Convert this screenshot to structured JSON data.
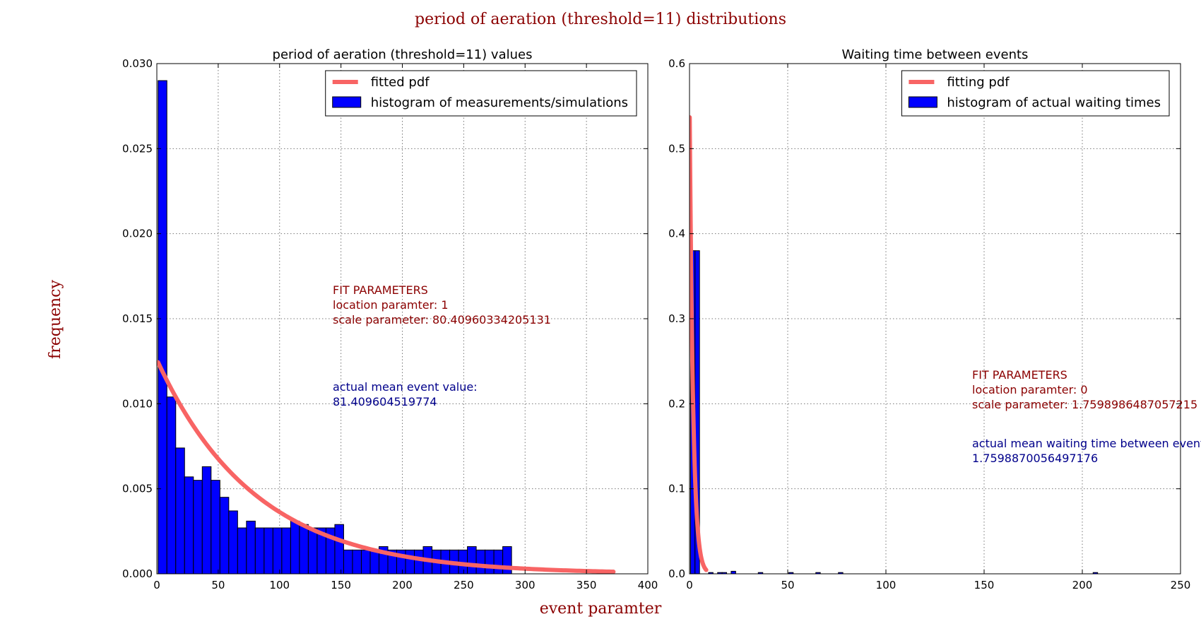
{
  "figure": {
    "suptitle": "period of aeration (threshold=11) distributions",
    "xlabel": "event paramter",
    "ylabel": "frequency",
    "colors": {
      "suptitle": "#8b0000",
      "bars": "#0000ff",
      "pdf": "#f86464",
      "fit_text": "#8b0000",
      "mean_text": "#00008b"
    }
  },
  "chart_data": [
    {
      "type": "bar",
      "title": "period of aeration (threshold=11) values",
      "xlim": [
        0,
        400
      ],
      "ylim": [
        0,
        0.03
      ],
      "xticks": [
        0,
        50,
        100,
        150,
        200,
        250,
        300,
        350,
        400
      ],
      "yticks": [
        0.0,
        0.005,
        0.01,
        0.015,
        0.02,
        0.025,
        0.03
      ],
      "xtick_labels": [
        "0",
        "50",
        "100",
        "150",
        "200",
        "250",
        "300",
        "350",
        "400"
      ],
      "ytick_labels": [
        "0.000",
        "0.005",
        "0.010",
        "0.015",
        "0.020",
        "0.025",
        "0.030"
      ],
      "grid": true,
      "legend_position": "top-right",
      "legend": [
        "fitted pdf",
        "histogram of measurements/simulations"
      ],
      "bin_width": 7.2,
      "bin_starts": [
        1,
        8.2,
        15.4,
        22.6,
        29.8,
        37,
        44.2,
        51.4,
        58.6,
        65.8,
        73,
        80.2,
        87.4,
        94.6,
        101.8,
        109,
        116.2,
        123.4,
        130.6,
        137.8,
        145,
        152.2,
        159.4,
        166.6,
        173.8,
        181,
        188.2,
        195.4,
        202.6,
        209.8,
        217,
        224.2,
        231.4,
        238.6,
        245.8,
        253,
        260.2,
        267.4,
        274.6,
        281.8
      ],
      "values": [
        0.029,
        0.0104,
        0.0074,
        0.0057,
        0.0055,
        0.0063,
        0.0055,
        0.0045,
        0.0037,
        0.0027,
        0.0031,
        0.0027,
        0.0027,
        0.0027,
        0.0027,
        0.0031,
        0.0029,
        0.0027,
        0.0027,
        0.0027,
        0.0029,
        0.0014,
        0.0014,
        0.0014,
        0.0014,
        0.0016,
        0.0014,
        0.0014,
        0.0014,
        0.0014,
        0.0016,
        0.0014,
        0.0014,
        0.0014,
        0.0014,
        0.0016,
        0.0014,
        0.0014,
        0.0014,
        0.0016
      ],
      "pdf": {
        "name": "fitted pdf",
        "distribution": "exponential",
        "loc": 1,
        "scale": 80.40960334205131,
        "x_range": [
          1,
          372
        ]
      },
      "fit_text": [
        "FIT PARAMETERS",
        "location paramter: 1",
        "scale parameter: 80.40960334205131"
      ],
      "mean_text": [
        "actual mean event value:",
        "81.409604519774"
      ]
    },
    {
      "type": "bar",
      "title": "Waiting time between events",
      "xlim": [
        0,
        250
      ],
      "ylim": [
        0,
        0.6
      ],
      "xticks": [
        0,
        50,
        100,
        150,
        200,
        250
      ],
      "yticks": [
        0.0,
        0.1,
        0.2,
        0.3,
        0.4,
        0.5,
        0.6
      ],
      "xtick_labels": [
        "0",
        "50",
        "100",
        "150",
        "200",
        "250"
      ],
      "ytick_labels": [
        "0.0",
        "0.1",
        "0.2",
        "0.3",
        "0.4",
        "0.5",
        "0.6"
      ],
      "grid": true,
      "legend_position": "top-right",
      "legend": [
        "fitting pdf",
        "histogram of actual waiting times"
      ],
      "bin_width": 2.3,
      "bin_starts": [
        0.5,
        2.8,
        9.7,
        14.3,
        16.6,
        21.2,
        35,
        50.5,
        64.3,
        75.8,
        205.5
      ],
      "values": [
        0.38,
        0.38,
        0.0015,
        0.0015,
        0.0015,
        0.003,
        0.0015,
        0.0015,
        0.0015,
        0.0015,
        0.0015
      ],
      "pdf": {
        "name": "fitting pdf",
        "distribution": "exponential",
        "loc": 0,
        "scale": 1.7598986487057215,
        "x_range": [
          0.1,
          8.5
        ]
      },
      "fit_text": [
        "FIT PARAMETERS",
        "location paramter: 0",
        "scale parameter: 1.7598986487057215"
      ],
      "mean_text": [
        "actual mean waiting time between events",
        "1.7598870056497176"
      ]
    }
  ]
}
